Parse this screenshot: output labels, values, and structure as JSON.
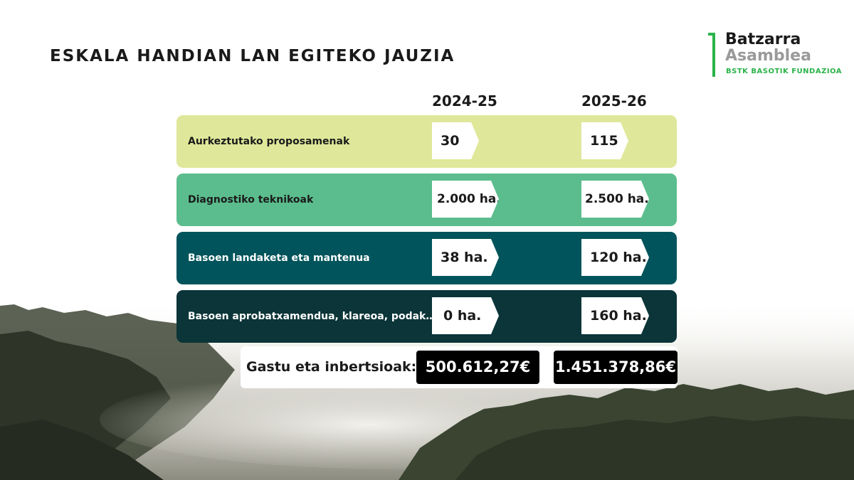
{
  "title": "ESKALA HANDIAN LAN EGITEKO JAUZIA",
  "logo": {
    "line1": "Batzarra",
    "line2": "Asamblea",
    "line3": "BSTK BASOTIK FUNDAZIOA"
  },
  "columns": [
    "2024-25",
    "2025-26"
  ],
  "rows": [
    {
      "label": "Aurkeztutako proposamenak",
      "v1": "30",
      "v2": "115",
      "color": "#dfe89a",
      "text_color": "#1a1a1a"
    },
    {
      "label": "Diagnostiko teknikoak",
      "v1": "2.000 ha.",
      "v2": "2.500 ha.",
      "color": "#5bbd8d",
      "text_color": "#1a1a1a"
    },
    {
      "label": "Basoen landaketa eta mantenua",
      "v1": "38 ha.",
      "v2": "120 ha.",
      "color": "#01545b",
      "text_color": "#ffffff"
    },
    {
      "label": "Basoen aprobatxamendua, klareoa, podak…",
      "v1": "0 ha.",
      "v2": "160 ha.",
      "color": "#0b3538",
      "text_color": "#ffffff"
    }
  ],
  "total": {
    "label": "Gastu eta inbertsioak:",
    "v1": "500.612,27€",
    "v2": "1.451.378,86€"
  }
}
